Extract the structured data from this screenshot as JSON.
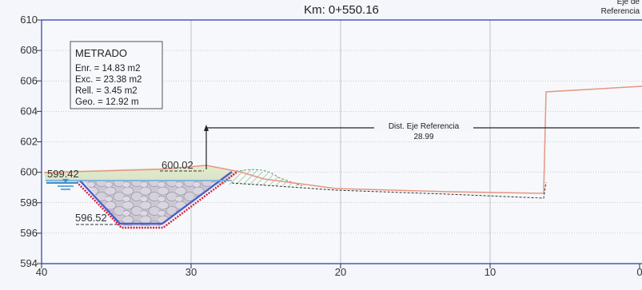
{
  "header": {
    "title_line1": "",
    "title_line2": "Km: 0+550.16",
    "ref_line1": "Eje de",
    "ref_line2": "Referencia"
  },
  "axes": {
    "x_ticks": [
      40,
      30,
      20,
      10,
      0
    ],
    "y_ticks": [
      594,
      596,
      598,
      600,
      602,
      604,
      606,
      608,
      610
    ],
    "x_range": [
      40,
      0
    ],
    "y_range": [
      594,
      610
    ]
  },
  "metrado": {
    "title": "METRADO",
    "lines": [
      "Enr. = 14.83 m2",
      "Exc. = 23.38 m2",
      "Rell. = 3.45 m2",
      "Geo. = 12.92 m"
    ]
  },
  "annotations": {
    "elev_left": "599.42",
    "elev_top": "600.02",
    "elev_bottom": "596.52",
    "dist_label": "Dist. Eje Referencia",
    "dist_value": "28.99"
  },
  "colors": {
    "frame": "#2b3aa8",
    "grid": "#9a9a9a",
    "terrain": "#e8957f",
    "channel_outline": "#d0213d",
    "channel_inner": "#5060c8",
    "rock_fill": "#c9c6d1",
    "hatch": "#56a84d",
    "water": "#3b8fd6"
  }
}
